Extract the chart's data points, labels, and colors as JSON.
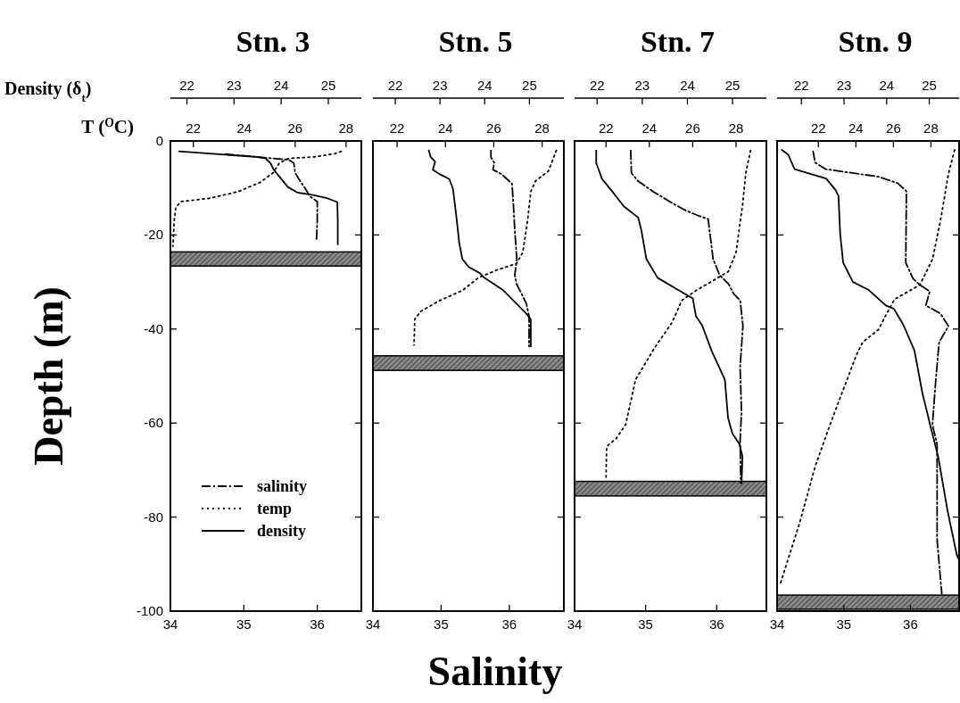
{
  "chart_data": [
    {
      "type": "line",
      "title": "Stn. 3",
      "ylabel": "Depth (m)",
      "xlabel": "Salinity",
      "x2label": "T ($^{O}$C)",
      "xlim": [
        34,
        36.6
      ],
      "xticks": [
        34,
        35,
        36
      ],
      "x2lim": [
        21.1,
        28.6
      ],
      "x2ticks": [
        22,
        24,
        26,
        28
      ],
      "ylim": [
        -100,
        0
      ],
      "yticks": [
        -100,
        -80,
        -60,
        -40,
        -20,
        0
      ],
      "legend": "bottom left",
      "bands": [
        {
          "axis": "y",
          "from": -26.6,
          "to": -23.6,
          "color": "#888888"
        }
      ],
      "series": [
        {
          "name": "salinity",
          "color": "#000000",
          "line_style": "dashed",
          "x": [
            34.75,
            35.18,
            35.31,
            35.61,
            35.68,
            35.7,
            35.75,
            35.91,
            36.0,
            36.0,
            35.99
          ],
          "values": [
            -2.8,
            -3.4,
            -3.6,
            -4.0,
            -4.7,
            -6.8,
            -8.1,
            -11.9,
            -12.9,
            -16.9,
            -21
          ]
        },
        {
          "name": "temp",
          "color": "#000000",
          "line_style": "dotted",
          "axis": "x2",
          "x": [
            27.81,
            27.56,
            26.75,
            25.75,
            25.38,
            25.13,
            24.63,
            23.75,
            22.63,
            21.5,
            21.31,
            21.25,
            21.2
          ],
          "values": [
            -2.2,
            -2.7,
            -3.4,
            -3.7,
            -4.7,
            -6.8,
            -8.8,
            -10.8,
            -12.2,
            -12.9,
            -14.2,
            -16.9,
            -22.4
          ]
        }
      ]
    },
    {
      "type": "line",
      "xlabel": "Density (δ$_{t}$)",
      "xlim": [
        21.65,
        25.7
      ],
      "xticks": [
        22,
        23,
        24,
        25
      ],
      "ylim": [
        -100,
        0
      ],
      "tick_labels": "x",
      "legend": "bottom left",
      "series": [
        {
          "name": "density",
          "color": "#000000",
          "line_style": "solid",
          "x": [
            21.83,
            23.47,
            23.67,
            23.77,
            23.84,
            23.98,
            24.14,
            24.35,
            24.68,
            24.95,
            25.19,
            25.2,
            25.2
          ],
          "values": [
            -2.2,
            -3.4,
            -3.7,
            -4.7,
            -6.1,
            -7.8,
            -9.8,
            -11,
            -11.5,
            -12.1,
            -13,
            -16.9,
            -22
          ]
        }
      ]
    },
    {
      "type": "line",
      "title": "Stn. 5",
      "xlim": [
        34,
        36.8
      ],
      "xticks": [
        34,
        35,
        36
      ],
      "x2lim": [
        21.0,
        28.9
      ],
      "x2ticks": [
        22,
        24,
        26,
        28
      ],
      "ylim": [
        -100,
        0
      ],
      "yticks": [
        -100,
        -80,
        -60,
        -40,
        -20,
        0
      ],
      "tick_labels": "x",
      "bands": [
        {
          "axis": "y",
          "from": -48.8,
          "to": -45.7,
          "color": "#888888"
        }
      ],
      "series": [
        {
          "color": "#000000",
          "line_style": "dashed",
          "x": [
            35.73,
            35.73,
            35.78,
            35.76,
            35.89,
            36.04,
            36.06,
            36.08,
            36.11,
            36.08,
            36.11,
            36.18,
            36.25,
            36.29,
            36.29
          ],
          "values": [
            -2.0,
            -3.4,
            -4.7,
            -6.1,
            -7.1,
            -9.1,
            -13.6,
            -19.0,
            -25.1,
            -28.5,
            -30.5,
            -32.5,
            -34.6,
            -37.3,
            -43.7
          ]
        },
        {
          "color": "#000000",
          "line_style": "dotted",
          "axis": "x2",
          "x": [
            28.59,
            28.26,
            27.73,
            27.53,
            27.4,
            27.2,
            26.94,
            26.15,
            25.36,
            24.7,
            23.78,
            22.99,
            22.73,
            22.7
          ],
          "values": [
            -2.0,
            -6.4,
            -8.5,
            -10.8,
            -16.9,
            -23.7,
            -26.1,
            -27.4,
            -29.1,
            -31.8,
            -33.9,
            -36.2,
            -37.9,
            -43.4
          ]
        }
      ]
    },
    {
      "type": "line",
      "xlim": [
        21.5,
        25.77
      ],
      "xticks": [
        22,
        23,
        24,
        25
      ],
      "ylim": [
        -100,
        0
      ],
      "tick_labels": "x",
      "series": [
        {
          "color": "#000000",
          "line_style": "solid",
          "x": [
            22.75,
            22.79,
            22.89,
            22.84,
            23.0,
            23.21,
            23.29,
            23.36,
            23.43,
            23.5,
            23.64,
            23.89,
            23.99,
            24.42,
            24.71,
            24.92,
            25.03,
            25.03
          ],
          "values": [
            -2.0,
            -3.4,
            -4.4,
            -6.1,
            -7.1,
            -8.1,
            -10.2,
            -15.6,
            -21.7,
            -25.1,
            -26.8,
            -28.1,
            -29.1,
            -31.8,
            -34.6,
            -36.6,
            -37.9,
            -43.7
          ]
        }
      ]
    },
    {
      "type": "line",
      "title": "Stn. 7",
      "xlim": [
        34,
        36.7
      ],
      "xticks": [
        34,
        35,
        36
      ],
      "x2lim": [
        20.55,
        29.4
      ],
      "x2ticks": [
        22,
        24,
        26,
        28
      ],
      "ylim": [
        -100,
        0
      ],
      "yticks": [
        -100,
        -80,
        -60,
        -40,
        -20,
        0
      ],
      "tick_labels": "x",
      "bands": [
        {
          "axis": "y",
          "from": -75.5,
          "to": -72.4,
          "color": "#888888"
        }
      ],
      "series": [
        {
          "color": "#000000",
          "line_style": "dashed",
          "x": [
            34.79,
            34.8,
            34.89,
            35.11,
            35.34,
            35.54,
            35.74,
            35.88,
            35.9,
            35.95,
            36.04,
            36.17,
            36.24,
            36.33,
            36.37,
            36.33,
            36.35,
            36.33,
            36.34
          ],
          "values": [
            -2.0,
            -6.8,
            -8.5,
            -10.8,
            -12.9,
            -14.6,
            -15.9,
            -16.6,
            -19.0,
            -25.1,
            -28.5,
            -30.5,
            -32.5,
            -33.9,
            -39.3,
            -48.1,
            -57.6,
            -63.7,
            -72.8
          ]
        },
        {
          "color": "#000000",
          "line_style": "dotted",
          "axis": "x2",
          "x": [
            28.67,
            28.45,
            28.3,
            28.0,
            27.64,
            26.9,
            26.16,
            25.5,
            25.05,
            24.24,
            23.36,
            22.91,
            22.47,
            22.03,
            22.0
          ],
          "values": [
            -2.0,
            -6.8,
            -13.6,
            -23.7,
            -27.8,
            -29.8,
            -31.8,
            -33.9,
            -38.6,
            -44.0,
            -50.8,
            -60.3,
            -63.3,
            -65.0,
            -71.8
          ]
        }
      ]
    },
    {
      "type": "line",
      "xlim": [
        21.5,
        25.75
      ],
      "xticks": [
        22,
        23,
        24,
        25
      ],
      "ylim": [
        -100,
        0
      ],
      "tick_labels": "x",
      "series": [
        {
          "color": "#000000",
          "line_style": "solid",
          "x": [
            21.98,
            21.98,
            22.11,
            22.34,
            22.59,
            22.91,
            22.98,
            23.09,
            23.34,
            23.76,
            24.12,
            24.19,
            24.33,
            24.54,
            24.83,
            24.9,
            25.0,
            25.15,
            25.22,
            25.2
          ],
          "values": [
            -2.0,
            -4.7,
            -8.1,
            -10.8,
            -13.9,
            -16.3,
            -19.0,
            -25.1,
            -29.1,
            -31.5,
            -33.5,
            -37.3,
            -39.3,
            -44.7,
            -50.8,
            -58.9,
            -62.3,
            -64.4,
            -67.1,
            -72.8
          ]
        }
      ]
    },
    {
      "type": "line",
      "title": "Stn. 9",
      "xlim": [
        34,
        36.73
      ],
      "xticks": [
        34,
        35,
        36
      ],
      "x2lim": [
        19.8,
        29.5
      ],
      "x2ticks": [
        22,
        24,
        26,
        28
      ],
      "ylim": [
        -100,
        0
      ],
      "yticks": [
        -100,
        -80,
        -60,
        -40,
        -20,
        0
      ],
      "tick_labels": "x",
      "bands": [
        {
          "axis": "y",
          "from": -99.6,
          "to": -96.6,
          "color": "#888888"
        }
      ],
      "series": [
        {
          "color": "#000000",
          "line_style": "dashed",
          "x": [
            34.54,
            34.57,
            34.73,
            35.52,
            35.81,
            35.94,
            35.93,
            36.04,
            36.14,
            36.29,
            36.23,
            36.45,
            36.57,
            36.43,
            36.38,
            36.33,
            36.4,
            36.4,
            36.47
          ],
          "values": [
            -2.2,
            -4.6,
            -6.0,
            -7.6,
            -9.0,
            -10.7,
            -25.9,
            -29.3,
            -30.6,
            -32.0,
            -35.0,
            -36.7,
            -39.4,
            -42.8,
            -50.9,
            -60.4,
            -64.5,
            -84.8,
            -96.3
          ]
        },
        {
          "color": "#000000",
          "line_style": "dotted",
          "axis": "x2",
          "x": [
            29.26,
            28.93,
            28.5,
            28.08,
            27.41,
            26.05,
            25.55,
            25.21,
            24.36,
            24.03,
            22.68,
            21.83,
            20.99,
            19.97
          ],
          "values": [
            -1.9,
            -7.0,
            -17.1,
            -25.2,
            -30.6,
            -33.7,
            -37.4,
            -40.1,
            -42.8,
            -45.5,
            -59.7,
            -69.2,
            -81.4,
            -94.2
          ]
        }
      ]
    },
    {
      "type": "line",
      "xlim": [
        21.43,
        25.7
      ],
      "xticks": [
        22,
        23,
        24,
        25
      ],
      "ylim": [
        -100,
        0
      ],
      "tick_labels": "x",
      "series": [
        {
          "color": "#000000",
          "line_style": "solid",
          "x": [
            21.54,
            21.69,
            21.84,
            22.58,
            22.8,
            22.87,
            22.91,
            22.98,
            23.21,
            23.58,
            23.98,
            24.17,
            24.39,
            24.65,
            24.84,
            25.06,
            25.21,
            25.43,
            25.65,
            25.68
          ],
          "values": [
            -1.9,
            -2.9,
            -6.0,
            -8.0,
            -10.4,
            -11.7,
            -19.8,
            -25.9,
            -30.0,
            -31.7,
            -35.0,
            -35.7,
            -39.1,
            -44.5,
            -53.7,
            -61.8,
            -67.2,
            -78.7,
            -88.2,
            -88.8
          ]
        }
      ]
    }
  ]
}
